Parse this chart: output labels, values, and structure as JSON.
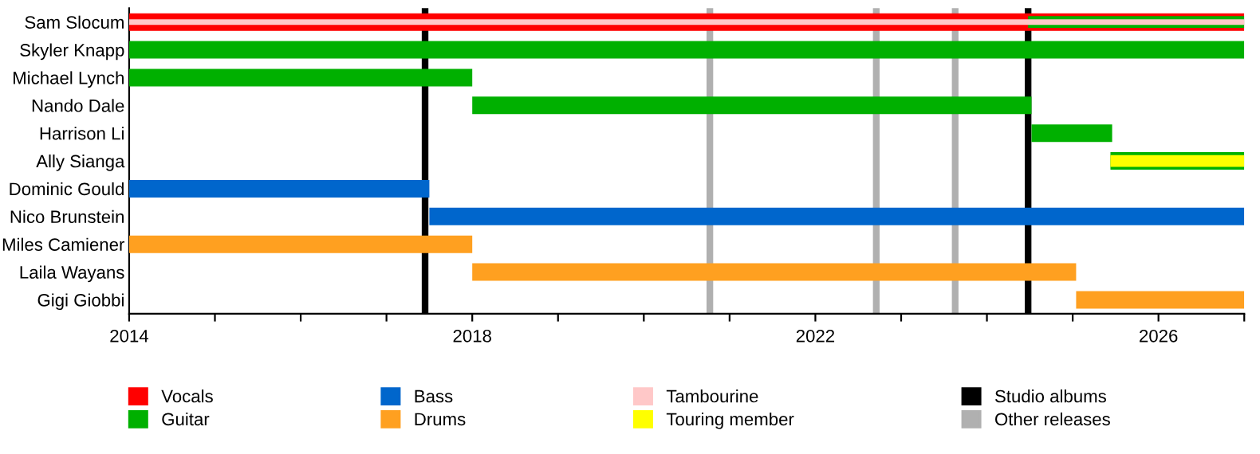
{
  "chart_data": {
    "type": "bar",
    "orientation": "horizontal",
    "categories": [
      "Sam Slocum",
      "Skyler Knapp",
      "Michael Lynch",
      "Nando Dale",
      "Harrison Li",
      "Ally Sianga",
      "Dominic Gould",
      "Nico Brunstein",
      "Miles Camiener",
      "Laila Wayans",
      "Gigi Giobbi"
    ],
    "series": [
      {
        "name": "Vocals",
        "color": "#ff0000",
        "base": [
          2014,
          null,
          null,
          null,
          null,
          null,
          null,
          null,
          null,
          null,
          null
        ],
        "values": [
          13,
          null,
          null,
          null,
          null,
          null,
          null,
          null,
          null,
          null,
          null
        ]
      },
      {
        "name": "Guitar",
        "color": "#00b000",
        "base": [
          2024.48,
          2014,
          2014,
          2018,
          2024.52,
          2025.44,
          null,
          null,
          null,
          null,
          null
        ],
        "values": [
          2.52,
          13,
          4,
          6.52,
          0.94,
          1.56,
          null,
          null,
          null,
          null,
          null
        ]
      },
      {
        "name": "Bass",
        "color": "#0066cc",
        "base": [
          null,
          null,
          null,
          null,
          null,
          null,
          2014,
          2017.5,
          null,
          null,
          null
        ],
        "values": [
          null,
          null,
          null,
          null,
          null,
          null,
          3.5,
          9.5,
          null,
          null,
          null
        ]
      },
      {
        "name": "Drums",
        "color": "#ffa020",
        "base": [
          null,
          null,
          null,
          null,
          null,
          null,
          null,
          null,
          2014,
          2018,
          2025.04
        ],
        "values": [
          null,
          null,
          null,
          null,
          null,
          null,
          null,
          null,
          4,
          7.04,
          1.96
        ]
      },
      {
        "name": "Tambourine",
        "color": "#ffc8c8",
        "base": [
          2014,
          null,
          null,
          null,
          null,
          null,
          null,
          null,
          null,
          null,
          null
        ],
        "values": [
          13,
          null,
          null,
          null,
          null,
          null,
          null,
          null,
          null,
          null,
          null
        ]
      },
      {
        "name": "Touring member",
        "color": "#ffff00",
        "base": [
          null,
          null,
          null,
          null,
          null,
          2025.44,
          null,
          null,
          null,
          null,
          null
        ],
        "values": [
          null,
          null,
          null,
          null,
          null,
          1.56,
          null,
          null,
          null,
          null,
          null
        ]
      }
    ],
    "ref_lines": [
      {
        "axis": "x",
        "value": 2017.45,
        "label": "Studio albums",
        "color": "#000000"
      },
      {
        "axis": "x",
        "value": 2024.48,
        "color": "#000000"
      },
      {
        "axis": "x",
        "value": 2020.77,
        "label": "Other releases",
        "color": "#b0b0b0"
      },
      {
        "axis": "x",
        "value": 2022.71,
        "color": "#b0b0b0"
      },
      {
        "axis": "x",
        "value": 2023.63,
        "color": "#b0b0b0"
      }
    ],
    "xlim": [
      2014,
      2027
    ],
    "xticks": [
      2014,
      {
        "value": 2015,
        "label": null
      },
      {
        "value": 2016,
        "label": null
      },
      {
        "value": 2017,
        "label": null
      },
      2018,
      {
        "value": 2019,
        "label": null
      },
      {
        "value": 2020,
        "label": null
      },
      {
        "value": 2021,
        "label": null
      },
      2022,
      {
        "value": 2023,
        "label": null
      },
      {
        "value": 2024,
        "label": null
      },
      {
        "value": 2025,
        "label": null
      },
      2026,
      {
        "value": 2027,
        "label": null
      }
    ],
    "grid": false,
    "legend": "bottom"
  }
}
